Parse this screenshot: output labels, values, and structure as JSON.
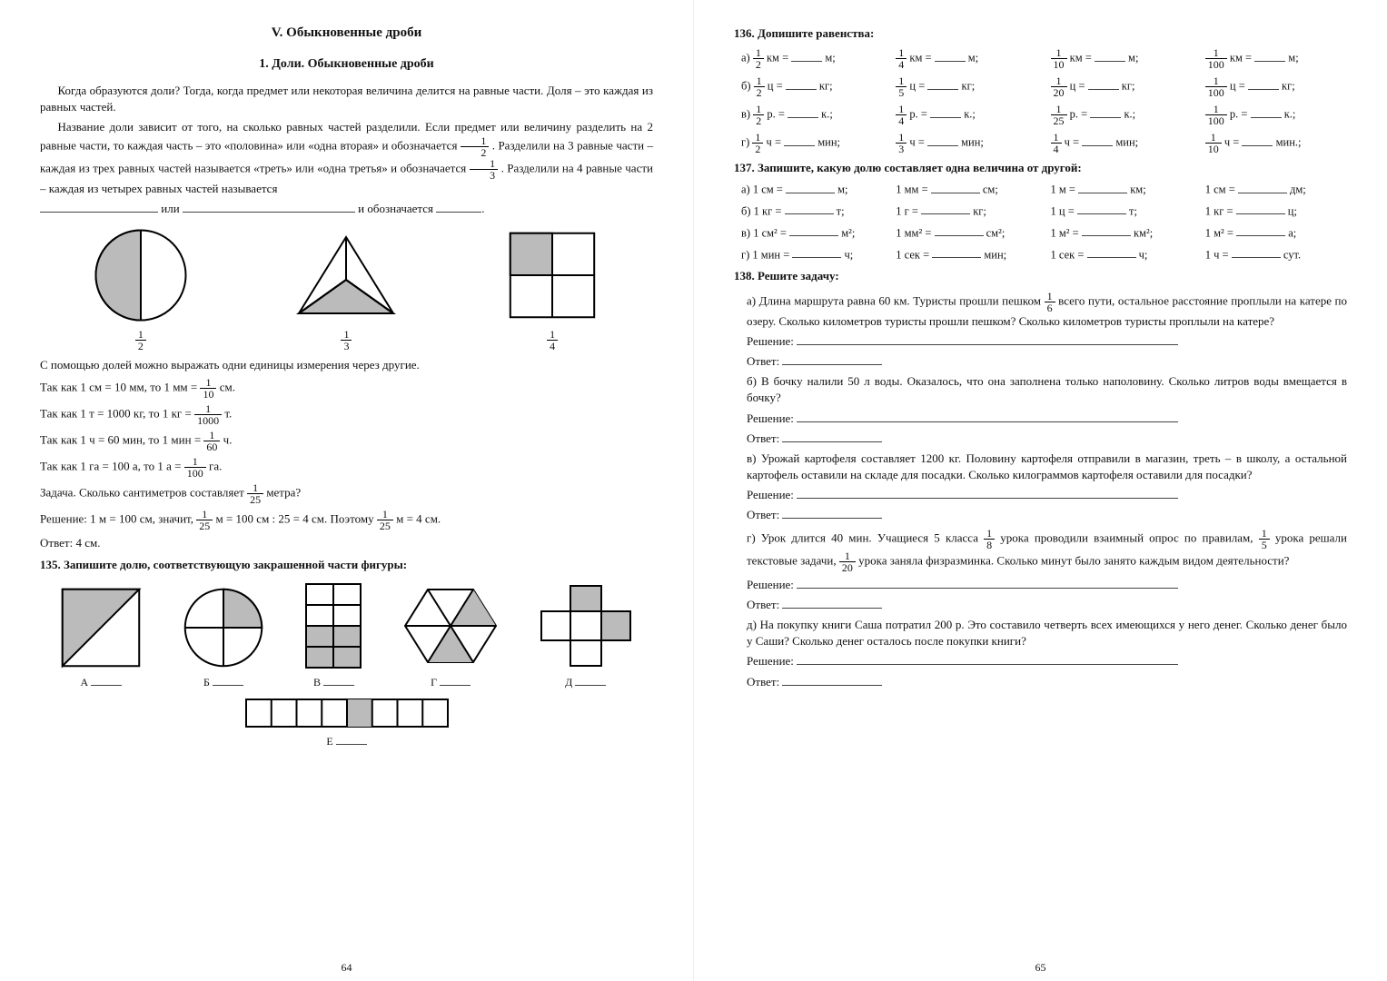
{
  "page_left_num": "64",
  "page_right_num": "65",
  "chapter": "V. Обыкновенные дроби",
  "section": "1. Доли. Обыкновенные дроби",
  "intro_p1": "Когда образуются доли? Тогда, когда предмет или некоторая величина делится на равные части. Доля – это каждая из равных частей.",
  "intro_p2": "Название доли зависит от того, на сколько равных частей разделили. Если предмет или величину разделить на 2 равные части, то каждая часть – это «половина» или «одна вторая» и обозначается ",
  "intro_p2b": ". Разделили на 3 равные части – каждая из трех равных частей называется «треть» или «одна третья» и обозначается ",
  "intro_p2c": ". Разделили на 4 равные части – каждая из четырех равных частей называется",
  "blankrow_mid": " или ",
  "blankrow_end": " и обозначается ",
  "fig_labels": [
    "1/2",
    "1/3",
    "1/4"
  ],
  "units_line": "С помощью долей можно выражать одни единицы измерения через другие.",
  "unit_rows": [
    {
      "a": "Так как 1 см = 10 мм, то 1 мм = ",
      "num": "1",
      "den": "10",
      "b": " см."
    },
    {
      "a": "Так как 1 т = 1000 кг, то 1 кг = ",
      "num": "1",
      "den": "1000",
      "b": " т."
    },
    {
      "a": "Так как 1 ч = 60 мин, то 1 мин = ",
      "num": "1",
      "den": "60",
      "b": " ч."
    },
    {
      "a": "Так как 1 га = 100 а, то 1 а = ",
      "num": "1",
      "den": "100",
      "b": " га."
    }
  ],
  "task_q": "Задача. Сколько сантиметров составляет ",
  "task_q_num": "1",
  "task_q_den": "25",
  "task_q_tail": " метра?",
  "task_sol_a": "Решение: 1 м = 100 см, значит, ",
  "task_sol_b": " м = 100 см : 25 = 4 см. Поэтому ",
  "task_sol_c": " м = 4 см.",
  "task_ans": "Ответ: 4 см.",
  "ex135_head": "135. Запишите долю, соответствующую закрашенной части фигуры:",
  "ex135_labels": [
    "А",
    "Б",
    "В",
    "Г",
    "Д",
    "Е"
  ],
  "ex136_head": "136. Допишите равенства:",
  "ex136_rows": [
    {
      "p": "а)",
      "items": [
        {
          "n": "1",
          "d": "2",
          "u": "км",
          "r": "м"
        },
        {
          "n": "1",
          "d": "4",
          "u": "км",
          "r": "м"
        },
        {
          "n": "1",
          "d": "10",
          "u": "км",
          "r": "м"
        },
        {
          "n": "1",
          "d": "100",
          "u": "км",
          "r": "м"
        }
      ]
    },
    {
      "p": "б)",
      "items": [
        {
          "n": "1",
          "d": "2",
          "u": "ц",
          "r": "кг"
        },
        {
          "n": "1",
          "d": "5",
          "u": "ц",
          "r": "кг"
        },
        {
          "n": "1",
          "d": "20",
          "u": "ц",
          "r": "кг"
        },
        {
          "n": "1",
          "d": "100",
          "u": "ц",
          "r": "кг"
        }
      ]
    },
    {
      "p": "в)",
      "items": [
        {
          "n": "1",
          "d": "2",
          "u": "р.",
          "r": "к."
        },
        {
          "n": "1",
          "d": "4",
          "u": "р.",
          "r": "к."
        },
        {
          "n": "1",
          "d": "25",
          "u": "р.",
          "r": "к."
        },
        {
          "n": "1",
          "d": "100",
          "u": "р.",
          "r": "к."
        }
      ]
    },
    {
      "p": "г)",
      "items": [
        {
          "n": "1",
          "d": "2",
          "u": "ч",
          "r": "мин"
        },
        {
          "n": "1",
          "d": "3",
          "u": "ч",
          "r": "мин"
        },
        {
          "n": "1",
          "d": "4",
          "u": "ч",
          "r": "мин"
        },
        {
          "n": "1",
          "d": "10",
          "u": "ч",
          "r": "мин."
        }
      ]
    }
  ],
  "ex137_head": "137. Запишите, какую долю составляет одна величина от другой:",
  "ex137_rows": [
    {
      "p": "а)",
      "items": [
        [
          "1 см =",
          "м;"
        ],
        [
          "1 мм =",
          "см;"
        ],
        [
          "1 м =",
          "км;"
        ],
        [
          "1 см =",
          "дм;"
        ]
      ]
    },
    {
      "p": "б)",
      "items": [
        [
          "1 кг =",
          "т;"
        ],
        [
          "1 г =",
          "кг;"
        ],
        [
          "1 ц =",
          "т;"
        ],
        [
          "1 кг =",
          "ц;"
        ]
      ]
    },
    {
      "p": "в)",
      "items": [
        [
          "1 см² =",
          "м²;"
        ],
        [
          "1 мм² =",
          "см²;"
        ],
        [
          "1 м² =",
          "км²;"
        ],
        [
          "1 м² =",
          "а;"
        ]
      ]
    },
    {
      "p": "г)",
      "items": [
        [
          "1 мин =",
          "ч;"
        ],
        [
          "1 сек =",
          "мин;"
        ],
        [
          "1 сек =",
          "ч;"
        ],
        [
          "1 ч =",
          "сут."
        ]
      ]
    }
  ],
  "ex138_head": "138. Решите задачу:",
  "ex138": [
    {
      "p": "а)",
      "t1": "Длина маршрута равна 60 км. Туристы прошли пешком ",
      "n": "1",
      "d": "6",
      "t2": " всего пути, остальное расстояние проплыли на катере по озеру. Сколько километров туристы прошли пешком? Сколько километров туристы проплыли на катере?"
    },
    {
      "p": "б)",
      "t1": "В бочку налили 50 л воды. Оказалось, что она заполнена только наполовину. Сколько литров воды вмещается в бочку?"
    },
    {
      "p": "в)",
      "t1": "Урожай картофеля составляет 1200 кг. Половину картофеля отправили в магазин, треть – в школу, а остальной картофель оставили на складе для посадки. Сколько килограммов картофеля оставили для посадки?"
    },
    {
      "p": "г)",
      "t1": "Урок длится 40 мин. Учащиеся 5 класса ",
      "n": "1",
      "d": "8",
      "t2": " урока проводили взаимный опрос по правилам, ",
      "n2": "1",
      "d2": "5",
      "t3": " урока решали текстовые задачи, ",
      "n3": "1",
      "d3": "20",
      "t4": " урока заняла физразминка. Сколько минут было занято каждым видом деятельности?"
    },
    {
      "p": "д)",
      "t1": "На покупку книги Саша потратил 200 р. Это составило четверть всех имеющихся у него денег. Сколько денег было у Саши? Сколько денег осталось после покупки книги?"
    }
  ],
  "sol_label": "Решение:",
  "ans_label": "Ответ:",
  "svg": {
    "circle_half": "<svg width='110' height='110' viewBox='0 0 100 100'><circle cx='50' cy='50' r='45' fill='#fff' stroke='#000' stroke-width='2'/><path d='M50 5 A45 45 0 0 0 50 95 Z' fill='#bbb' stroke='#000' stroke-width='2'/></svg>",
    "triangle_third": "<svg width='120' height='110' viewBox='0 0 120 100'><polygon points='60,8 112,92 8,92' fill='#fff' stroke='#000' stroke-width='2'/><polygon points='60,55 112,92 8,92' fill='#bbb' stroke='#000' stroke-width='2'/><line x1='60' y1='8' x2='60' y2='55' stroke='#000' stroke-width='2'/><line x1='60' y1='55' x2='8' y2='92' stroke='#000' stroke-width='2'/><line x1='60' y1='55' x2='112' y2='92' stroke='#000' stroke-width='2'/></svg>",
    "square_quarter": "<svg width='110' height='110' viewBox='0 0 100 100'><rect x='8' y='8' width='84' height='84' fill='#fff' stroke='#000' stroke-width='2'/><rect x='8' y='8' width='42' height='42' fill='#bbb' stroke='#000' stroke-width='2'/><line x1='50' y1='8' x2='50' y2='92' stroke='#000' stroke-width='2'/><line x1='8' y1='50' x2='92' y2='50' stroke='#000' stroke-width='2'/></svg>",
    "e135_a": "<svg width='96' height='96' viewBox='0 0 100 100'><rect x='6' y='6' width='88' height='88' fill='#fff' stroke='#000' stroke-width='2'/><polygon points='6,6 94,6 6,94' fill='#bbb' stroke='#000' stroke-width='2'/></svg>",
    "e135_b": "<svg width='96' height='96' viewBox='0 0 100 100'><circle cx='50' cy='50' r='44' fill='#fff' stroke='#000' stroke-width='2'/><path d='M50 50 L50 6 A44 44 0 0 1 94 50 Z' fill='#bbb' stroke='#000' stroke-width='2'/><line x1='50' y1='6' x2='50' y2='94' stroke='#000' stroke-width='2'/><line x1='6' y1='50' x2='94' y2='50' stroke='#000' stroke-width='2'/></svg>",
    "e135_c": "<svg width='70' height='100' viewBox='0 0 70 100'><rect x='5' y='4' width='60' height='92' fill='#fff' stroke='#000' stroke-width='2'/><rect x='5' y='50' width='60' height='46' fill='#bbb'/><line x1='5' y1='27' x2='65' y2='27' stroke='#000' stroke-width='2'/><line x1='5' y1='50' x2='65' y2='50' stroke='#000' stroke-width='2'/><line x1='5' y1='73' x2='65' y2='73' stroke='#000' stroke-width='2'/><line x1='35' y1='4' x2='35' y2='96' stroke='#000' stroke-width='2'/><rect x='5' y='4' width='60' height='92' fill='none' stroke='#000' stroke-width='2'/></svg>",
    "e135_d": "<svg width='110' height='100' viewBox='0 0 110 100'><polygon points='30,10 80,10 105,50 80,90 30,90 5,50' fill='#fff' stroke='#000' stroke-width='2'/><polygon points='55,50 80,10 105,50' fill='#bbb'/><polygon points='55,50 30,90 80,90' fill='#bbb'/><line x1='30' y1='10' x2='80' y2='90' stroke='#000' stroke-width='2'/><line x1='80' y1='10' x2='30' y2='90' stroke='#000' stroke-width='2'/><line x1='5' y1='50' x2='105' y2='50' stroke='#000' stroke-width='2'/></svg>",
    "e135_e": "<svg width='110' height='100' viewBox='0 0 110 100'><g fill='#fff' stroke='#000' stroke-width='2'><rect x='38' y='6' width='34' height='28'/><rect x='38' y='66' width='34' height='28'/><rect x='6' y='34' width='32' height='32'/><rect x='72' y='34' width='32' height='32'/><rect x='38' y='34' width='34' height='32'/></g><rect x='38' y='6' width='34' height='28' fill='#bbb' stroke='#000' stroke-width='2'/><rect x='72' y='34' width='32' height='32' fill='#bbb' stroke='#000' stroke-width='2'/></svg>",
    "e135_f": "<svg width='230' height='38' viewBox='0 0 230 38'><rect x='4' y='4' width='222' height='30' fill='#fff' stroke='#000' stroke-width='2'/><rect x='115' y='4' width='27.75' height='30' fill='#bbb'/><g stroke='#000' stroke-width='2'><line x1='31.75' y1='4' x2='31.75' y2='34'/><line x1='59.5' y1='4' x2='59.5' y2='34'/><line x1='87.25' y1='4' x2='87.25' y2='34'/><line x1='115' y1='4' x2='115' y2='34'/><line x1='142.75' y1='4' x2='142.75' y2='34'/><line x1='170.5' y1='4' x2='170.5' y2='34'/><line x1='198.25' y1='4' x2='198.25' y2='34'/></g></svg>"
  }
}
